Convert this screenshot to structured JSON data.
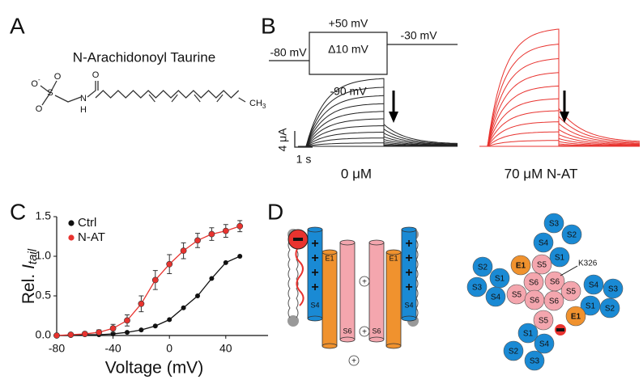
{
  "panel_a": {
    "letter": "A",
    "title": "N-Arachidonoyl Taurine",
    "atoms": [
      "O",
      "S",
      "O",
      "O",
      "N",
      "H",
      "O",
      "CH"
    ],
    "charge": "-",
    "subscript": "3"
  },
  "panel_b": {
    "letter": "B",
    "protocol": [
      "+50 mV",
      "-80 mV",
      "Δ10 mV",
      "-30 mV",
      "-90 mV"
    ],
    "scale": [
      "4 μA",
      "1 s"
    ],
    "captions": [
      "0 μM",
      "70 μM N-AT"
    ],
    "colors": [
      "#222222",
      "#e8332f"
    ]
  },
  "chart_data": {
    "type": "scatter",
    "letter": "C",
    "xlabel": "Voltage (mV)",
    "ylabel": [
      "Rel. ",
      "I",
      "tail"
    ],
    "x": [
      -80,
      -70,
      -60,
      -50,
      -40,
      -30,
      -20,
      -10,
      0,
      10,
      20,
      30,
      40,
      50
    ],
    "series": [
      {
        "name": "Ctrl",
        "color": "#111111",
        "values": [
          0,
          0,
          0.01,
          0.01,
          0.02,
          0.04,
          0.07,
          0.12,
          0.2,
          0.35,
          0.5,
          0.72,
          0.92,
          1.0
        ]
      },
      {
        "name": "N-AT",
        "color": "#e8332f",
        "values": [
          0,
          0.01,
          0.02,
          0.04,
          0.09,
          0.19,
          0.4,
          0.7,
          0.9,
          1.07,
          1.2,
          1.28,
          1.32,
          1.38
        ],
        "errors": [
          0.01,
          0.01,
          0.02,
          0.03,
          0.05,
          0.07,
          0.1,
          0.12,
          0.12,
          0.1,
          0.09,
          0.08,
          0.08,
          0.07
        ]
      }
    ],
    "xlim": [
      -80,
      70
    ],
    "xticks": [
      -80,
      -40,
      0,
      40
    ],
    "ylim": [
      0,
      1.5
    ],
    "yticks": [
      {
        "value": 0,
        "label": "0.0"
      },
      {
        "value": 0.5,
        "label": "0.5"
      },
      {
        "value": 1,
        "label": "1.0"
      },
      {
        "value": 1.5,
        "label": "1.5"
      }
    ],
    "legend": "top-left"
  },
  "panel_d": {
    "letter": "D",
    "helices": [
      "E1",
      "S6",
      "S4",
      "S6",
      "E1",
      "S4"
    ],
    "annotation": "K326",
    "circles": [
      {
        "label": "S3",
        "color": "#1a8ad4"
      },
      {
        "label": "S4",
        "color": "#1a8ad4"
      },
      {
        "label": "S2",
        "color": "#1a8ad4"
      },
      {
        "label": "S1",
        "color": "#1a8ad4"
      },
      {
        "label": "E1",
        "color": "#f0922e"
      },
      {
        "label": "S5",
        "color": "#f4a6ae"
      },
      {
        "label": "S2",
        "color": "#1a8ad4"
      },
      {
        "label": "S1",
        "color": "#1a8ad4"
      },
      {
        "label": "S3",
        "color": "#1a8ad4"
      },
      {
        "label": "S4",
        "color": "#1a8ad4"
      },
      {
        "label": "S6",
        "color": "#f4a6ae"
      },
      {
        "label": "S6",
        "color": "#f4a6ae"
      },
      {
        "label": "S5",
        "color": "#f4a6ae"
      },
      {
        "label": "S5",
        "color": "#f4a6ae"
      },
      {
        "label": "S6",
        "color": "#f4a6ae"
      },
      {
        "label": "S6",
        "color": "#f4a6ae"
      },
      {
        "label": "S4",
        "color": "#1a8ad4"
      },
      {
        "label": "S3",
        "color": "#1a8ad4"
      },
      {
        "label": "S1",
        "color": "#1a8ad4"
      },
      {
        "label": "S2",
        "color": "#1a8ad4"
      },
      {
        "label": "E1",
        "color": "#f0922e"
      },
      {
        "label": "S5",
        "color": "#f4a6ae"
      },
      {
        "label": "S1",
        "color": "#1a8ad4"
      },
      {
        "label": "S4",
        "color": "#1a8ad4"
      },
      {
        "label": "S2",
        "color": "#1a8ad4"
      },
      {
        "label": "S3",
        "color": "#1a8ad4"
      }
    ]
  }
}
